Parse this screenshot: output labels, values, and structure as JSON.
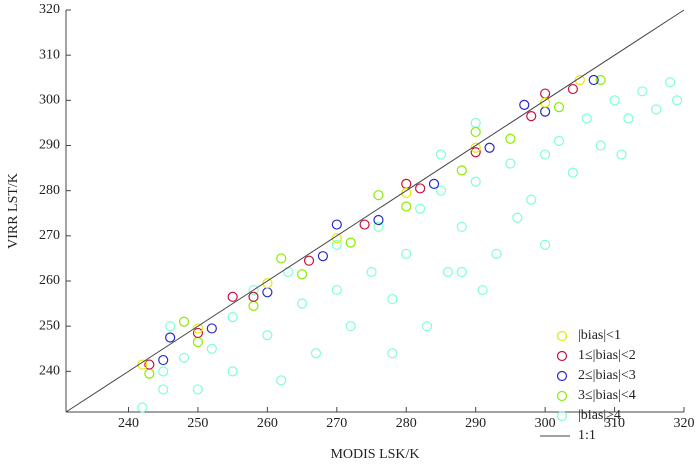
{
  "chart_data": {
    "type": "scatter",
    "x_label": "MODIS LSK/K",
    "y_label": "VIRR LST/K",
    "xlim": [
      231,
      320
    ],
    "ylim": [
      231,
      320
    ],
    "xticks": [
      240,
      250,
      260,
      270,
      280,
      290,
      300,
      310,
      320
    ],
    "yticks": [
      240,
      250,
      260,
      270,
      280,
      290,
      300,
      310,
      320
    ],
    "legend": "lower right",
    "reference_line": {
      "name": "1:1",
      "color": "#444444"
    },
    "series": [
      {
        "name": "|bias|<1",
        "color": "#e8e800",
        "x": [
          242,
          250,
          260,
          270,
          280,
          290,
          300,
          305
        ],
        "values": [
          241.5,
          249.5,
          259.5,
          269.5,
          279.5,
          289.5,
          299.5,
          304.5
        ]
      },
      {
        "name": "1≤|bias|<2",
        "color": "#c8103c",
        "x": [
          243,
          250,
          258,
          266,
          274,
          282,
          290,
          298,
          304,
          255,
          280,
          300
        ],
        "values": [
          241.5,
          248.5,
          256.5,
          264.5,
          272.5,
          280.5,
          288.5,
          296.5,
          302.5,
          256.5,
          281.5,
          301.5
        ]
      },
      {
        "name": "2≤|bias|<3",
        "color": "#2828c8",
        "x": [
          245,
          252,
          260,
          268,
          276,
          284,
          292,
          300,
          307,
          246,
          270,
          297
        ],
        "values": [
          242.5,
          249.5,
          257.5,
          265.5,
          273.5,
          281.5,
          289.5,
          297.5,
          304.5,
          247.5,
          272.5,
          299
        ]
      },
      {
        "name": "3≤|bias|<4",
        "color": "#88ee00",
        "x": [
          243,
          250,
          258,
          265,
          272,
          280,
          288,
          295,
          302,
          308,
          248,
          262,
          276,
          290
        ],
        "values": [
          239.5,
          246.5,
          254.5,
          261.5,
          268.5,
          276.5,
          284.5,
          291.5,
          298.5,
          304.5,
          251,
          265,
          279,
          293
        ]
      },
      {
        "name": "|bias|≥4",
        "color": "#7fffd4",
        "x": [
          242,
          245,
          246,
          250,
          252,
          255,
          255,
          258,
          260,
          262,
          263,
          265,
          267,
          270,
          270,
          272,
          275,
          276,
          278,
          280,
          282,
          283,
          285,
          286,
          288,
          290,
          291,
          293,
          295,
          296,
          298,
          300,
          300,
          302,
          304,
          306,
          308,
          310,
          312,
          314,
          316,
          318,
          319,
          290,
          285,
          248,
          245,
          278,
          288,
          311
        ],
        "values": [
          232,
          240,
          250,
          236,
          245,
          252,
          240,
          258,
          248,
          238,
          262,
          255,
          244,
          268,
          258,
          250,
          262,
          272,
          256,
          266,
          276,
          250,
          280,
          262,
          272,
          282,
          258,
          266,
          286,
          274,
          278,
          288,
          268,
          291,
          284,
          296,
          290,
          300,
          296,
          302,
          298,
          304,
          300,
          295,
          288,
          243,
          236,
          244,
          262,
          288
        ]
      }
    ]
  }
}
